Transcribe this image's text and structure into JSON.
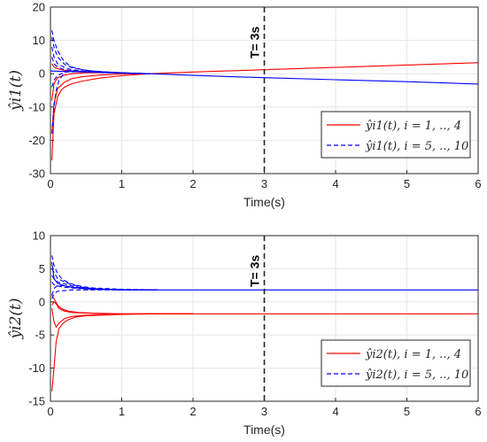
{
  "chart_data": [
    {
      "type": "line",
      "xlabel": "Time(s)",
      "ylabel": "ŷi1(t)",
      "xlim": [
        0,
        6
      ],
      "ylim": [
        -30,
        20
      ],
      "xticks": [
        "0",
        "1",
        "2",
        "3",
        "4",
        "5",
        "6"
      ],
      "yticks": [
        "20",
        "10",
        "0",
        "-10",
        "-20",
        "-30"
      ],
      "grid": true,
      "legend_position": "lower-right",
      "annotation": "T= 3s",
      "vline_x": 3,
      "legend": [
        {
          "label": "ŷi1(t), i = 1, .., 4",
          "color": "#ff0000",
          "style": "solid"
        },
        {
          "label": "ŷi1(t), i = 5, .., 10",
          "color": "#0000ff",
          "style": "dashed"
        }
      ],
      "series": [
        {
          "group": "i=1..4",
          "color": "#ff0000",
          "style": "solid",
          "x": [
            0.02,
            0.05,
            0.1,
            0.15,
            0.2,
            0.3,
            0.45,
            0.7,
            1.0,
            1.4,
            2,
            3,
            4,
            5,
            6
          ],
          "y": [
            -26,
            -12,
            -7,
            -5,
            -4,
            -3,
            -2.2,
            -1.3,
            -0.6,
            0,
            0.5,
            1.2,
            1.9,
            2.6,
            3.3
          ]
        },
        {
          "group": "i=1..4",
          "color": "#ff0000",
          "style": "solid",
          "x": [
            0.02,
            0.05,
            0.1,
            0.2,
            0.3,
            0.45,
            0.7,
            1.0,
            1.4
          ],
          "y": [
            -18,
            -9,
            -4.5,
            -2.5,
            -1.5,
            -0.9,
            -0.4,
            -0.1,
            0
          ]
        },
        {
          "group": "i=1..4",
          "color": "#ff0000",
          "style": "solid",
          "x": [
            0.02,
            0.05,
            0.1,
            0.2,
            0.3,
            0.5,
            0.8,
            1.1,
            1.4
          ],
          "y": [
            -8,
            -3,
            -1.2,
            -0.4,
            0,
            0.3,
            0.3,
            0.1,
            0
          ]
        },
        {
          "group": "i=1..4",
          "color": "#ff0000",
          "style": "solid",
          "x": [
            0.02,
            0.05,
            0.1,
            0.2,
            0.35,
            0.6,
            0.9,
            1.2,
            1.4
          ],
          "y": [
            3,
            2,
            1.5,
            1,
            0.8,
            0.6,
            0.4,
            0.1,
            0
          ]
        },
        {
          "group": "i=5..10",
          "color": "#0000ff",
          "style": "solid",
          "x": [
            0,
            1.4,
            2,
            3,
            4,
            5,
            6
          ],
          "y": [
            0.8,
            0,
            -0.5,
            -1.2,
            -1.8,
            -2.4,
            -3.1
          ]
        },
        {
          "group": "i=5..10",
          "color": "#0000ff",
          "style": "dashed",
          "x": [
            0.02,
            0.05,
            0.1,
            0.15,
            0.2,
            0.3,
            0.45,
            0.6,
            0.8,
            1.0,
            1.2,
            1.4
          ],
          "y": [
            13,
            10,
            7,
            5,
            3.5,
            2,
            1.2,
            0.8,
            0.5,
            0.3,
            0.1,
            0
          ]
        },
        {
          "group": "i=5..10",
          "color": "#0000ff",
          "style": "dashed",
          "x": [
            0.02,
            0.05,
            0.1,
            0.2,
            0.3,
            0.45,
            0.6,
            0.8,
            1.0,
            1.2,
            1.4
          ],
          "y": [
            11,
            8,
            5,
            2.8,
            1.8,
            1.2,
            0.8,
            0.5,
            0.3,
            0.1,
            0
          ]
        },
        {
          "group": "i=5..10",
          "color": "#0000ff",
          "style": "dashed",
          "x": [
            0.02,
            0.05,
            0.1,
            0.2,
            0.3,
            0.45,
            0.6,
            0.8,
            1.0,
            1.2,
            1.4
          ],
          "y": [
            8,
            5,
            3,
            1.8,
            1.2,
            0.8,
            0.5,
            0.4,
            0.2,
            0.1,
            0
          ]
        },
        {
          "group": "i=5..10",
          "color": "#0000ff",
          "style": "dashed",
          "x": [
            0.02,
            0.05,
            0.1,
            0.2,
            0.35,
            0.5,
            0.7,
            1.0,
            1.4
          ],
          "y": [
            5,
            3,
            2,
            1.2,
            0.8,
            0.6,
            0.4,
            0.2,
            0
          ]
        },
        {
          "group": "i=5..10",
          "color": "#0000ff",
          "style": "dashed",
          "x": [
            0.02,
            0.05,
            0.1,
            0.2,
            0.4,
            0.6,
            0.8,
            1.1,
            1.4
          ],
          "y": [
            -4,
            -2,
            -0.5,
            0.5,
            0.6,
            0.5,
            0.3,
            0.1,
            0
          ]
        },
        {
          "group": "i=5..10",
          "color": "#0000ff",
          "style": "dashed",
          "x": [
            0.02,
            0.05,
            0.08,
            0.12,
            0.2,
            0.35,
            0.5,
            0.8,
            1.1,
            1.4
          ],
          "y": [
            -18,
            -10,
            -5,
            -2,
            0.5,
            0.8,
            0.6,
            0.3,
            0.1,
            0
          ]
        }
      ]
    },
    {
      "type": "line",
      "xlabel": "Time(s)",
      "ylabel": "ŷi2(t)",
      "xlim": [
        0,
        6
      ],
      "ylim": [
        -15,
        10
      ],
      "xticks": [
        "0",
        "1",
        "2",
        "3",
        "4",
        "5",
        "6"
      ],
      "yticks": [
        "10",
        "5",
        "0",
        "-5",
        "-10",
        "-15"
      ],
      "grid": true,
      "legend_position": "lower-right",
      "annotation": "T= 3s",
      "vline_x": 3,
      "legend": [
        {
          "label": "ŷi2(t), i = 1, .., 4",
          "color": "#ff0000",
          "style": "solid"
        },
        {
          "label": "ŷi2(t), i = 5, .., 10",
          "color": "#0000ff",
          "style": "dashed"
        }
      ],
      "series": [
        {
          "group": "i=1..4",
          "color": "#ff0000",
          "style": "solid",
          "x": [
            0.02,
            0.05,
            0.08,
            0.12,
            0.18,
            0.25,
            0.35,
            0.5,
            0.7,
            1.0,
            1.5,
            2,
            6
          ],
          "y": [
            -13.5,
            -10,
            -6,
            -4,
            -3.2,
            -2.7,
            -2.3,
            -2.1,
            -2,
            -1.9,
            -1.8,
            -1.8,
            -1.8
          ]
        },
        {
          "group": "i=1..4",
          "color": "#ff0000",
          "style": "solid",
          "x": [
            0.02,
            0.05,
            0.08,
            0.12,
            0.2,
            0.3,
            0.5,
            0.8,
            1.2,
            2
          ],
          "y": [
            -1,
            -3,
            -3.8,
            -3.2,
            -2.5,
            -2.2,
            -2,
            -1.9,
            -1.8,
            -1.8
          ]
        },
        {
          "group": "i=1..4",
          "color": "#ff0000",
          "style": "solid",
          "x": [
            0.02,
            0.05,
            0.08,
            0.12,
            0.2,
            0.3,
            0.5,
            0.8,
            1.2,
            2
          ],
          "y": [
            -0.5,
            0,
            -0.3,
            -1,
            -1.4,
            -1.6,
            -1.7,
            -1.8,
            -1.8,
            -1.8
          ]
        },
        {
          "group": "i=1..4",
          "color": "#ff0000",
          "style": "solid",
          "x": [
            0.02,
            0.05,
            0.1,
            0.15,
            0.25,
            0.4,
            0.6,
            1.0,
            2
          ],
          "y": [
            1,
            0.5,
            -0.5,
            -1,
            -1.4,
            -1.6,
            -1.7,
            -1.8,
            -1.8
          ]
        },
        {
          "group": "i=5..10",
          "color": "#0000ff",
          "style": "solid",
          "x": [
            0.02,
            0.05,
            0.1,
            0.2,
            0.3,
            0.5,
            0.8,
            1.2,
            2,
            3,
            4,
            5,
            6
          ],
          "y": [
            6,
            3.5,
            2.8,
            2.4,
            2.2,
            2,
            1.9,
            1.8,
            1.8,
            1.8,
            1.8,
            1.8,
            1.8
          ]
        },
        {
          "group": "i=5..10",
          "color": "#0000ff",
          "style": "dashed",
          "x": [
            0.02,
            0.05,
            0.1,
            0.15,
            0.2,
            0.3,
            0.45,
            0.6,
            0.8,
            1.0,
            1.5
          ],
          "y": [
            7,
            5.5,
            4.3,
            3.6,
            3.2,
            2.7,
            2.3,
            2.1,
            2,
            1.9,
            1.8
          ]
        },
        {
          "group": "i=5..10",
          "color": "#0000ff",
          "style": "dashed",
          "x": [
            0.02,
            0.05,
            0.1,
            0.2,
            0.3,
            0.45,
            0.6,
            0.8,
            1.0,
            1.5
          ],
          "y": [
            5,
            4.5,
            3.5,
            3,
            2.6,
            2.2,
            2,
            1.9,
            1.8,
            1.8
          ]
        },
        {
          "group": "i=5..10",
          "color": "#0000ff",
          "style": "dashed",
          "x": [
            0.02,
            0.05,
            0.1,
            0.2,
            0.3,
            0.45,
            0.6,
            0.8,
            1.0,
            1.5
          ],
          "y": [
            4,
            3.5,
            3,
            2.7,
            2.4,
            2.1,
            2,
            1.9,
            1.8,
            1.8
          ]
        },
        {
          "group": "i=5..10",
          "color": "#0000ff",
          "style": "dashed",
          "x": [
            0.02,
            0.05,
            0.1,
            0.2,
            0.3,
            0.45,
            0.6,
            1.0,
            1.5
          ],
          "y": [
            1,
            2,
            2.5,
            2.4,
            2.2,
            2,
            1.9,
            1.8,
            1.8
          ]
        },
        {
          "group": "i=5..10",
          "color": "#0000ff",
          "style": "dashed",
          "x": [
            0.02,
            0.05,
            0.1,
            0.2,
            0.3,
            0.45,
            0.6,
            1.0,
            1.5
          ],
          "y": [
            0.5,
            1.2,
            1.6,
            1.7,
            1.8,
            1.8,
            1.8,
            1.8,
            1.8
          ]
        },
        {
          "group": "i=5..10",
          "color": "#0000ff",
          "style": "dashed",
          "x": [
            0.02,
            0.05,
            0.1,
            0.2,
            0.3,
            0.45,
            0.6,
            1.0,
            1.5
          ],
          "y": [
            3,
            2.6,
            2.4,
            2.2,
            2.1,
            2,
            1.9,
            1.8,
            1.8
          ]
        }
      ]
    }
  ]
}
